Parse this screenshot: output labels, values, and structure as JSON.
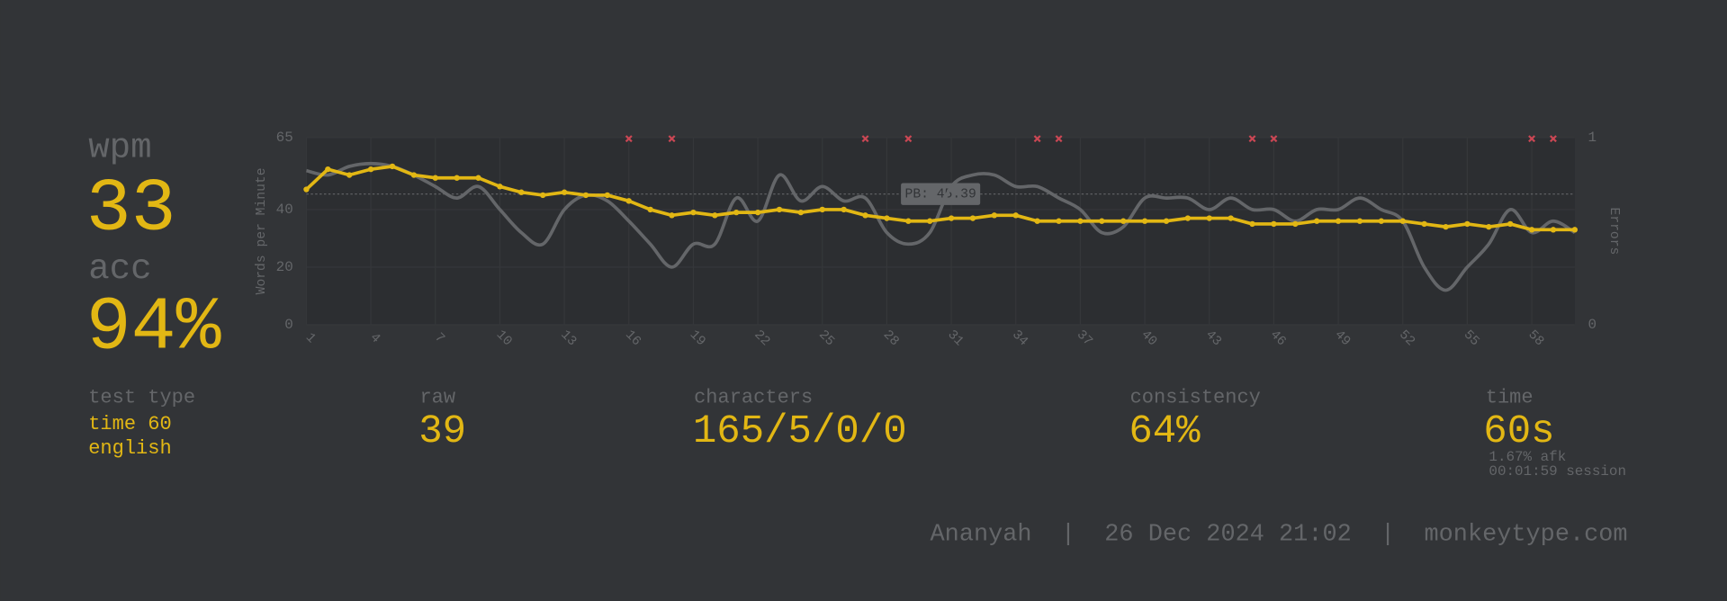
{
  "stats": {
    "wpm": {
      "label": "wpm",
      "value": 33
    },
    "acc": {
      "label": "acc",
      "value": "94%"
    },
    "test_type": {
      "label": "test type",
      "lines": [
        "time 60",
        "english"
      ]
    },
    "raw": {
      "label": "raw",
      "value": 39
    },
    "characters": {
      "label": "characters",
      "value": "165/5/0/0"
    },
    "consistency": {
      "label": "consistency",
      "value": "64%"
    },
    "time": {
      "label": "time",
      "value": "60s",
      "notes": [
        "1.67% afk",
        "00:01:59 session"
      ]
    }
  },
  "footer": "Ananyah  |  26 Dec 2024 21:02  |  monkeytype.com",
  "chart_data": {
    "type": "line",
    "y_label": "Words per Minute",
    "y2_label": "Errors",
    "x": [
      1,
      2,
      3,
      4,
      5,
      6,
      7,
      8,
      9,
      10,
      11,
      12,
      13,
      14,
      15,
      16,
      17,
      18,
      19,
      20,
      21,
      22,
      23,
      24,
      25,
      26,
      27,
      28,
      29,
      30,
      31,
      32,
      33,
      34,
      35,
      36,
      37,
      38,
      39,
      40,
      41,
      42,
      43,
      44,
      45,
      46,
      47,
      48,
      49,
      50,
      51,
      52,
      53,
      54,
      55,
      56,
      57,
      58,
      59,
      60
    ],
    "series": [
      {
        "color": "#646669",
        "smooth": true,
        "values": [
          53.5,
          52,
          55,
          56,
          55,
          52,
          48,
          44,
          48,
          40,
          32,
          28,
          40,
          45,
          43,
          36,
          28,
          20,
          28,
          28,
          44,
          36,
          52,
          43,
          48,
          43,
          44,
          32,
          28,
          32,
          48,
          52,
          52,
          48,
          48,
          44,
          40,
          32,
          34,
          44,
          44,
          44,
          40,
          44,
          40,
          40,
          36,
          40,
          40,
          44,
          40,
          36,
          20,
          12,
          20,
          28,
          40,
          32,
          36,
          32
        ]
      },
      {
        "color": "#e2b714",
        "smooth": false,
        "values": [
          47,
          54,
          52,
          54,
          55,
          52,
          51,
          51,
          51,
          48,
          46,
          45,
          46,
          45,
          45,
          43,
          40,
          38,
          39,
          38,
          39,
          39,
          40,
          39,
          40,
          40,
          38,
          37,
          36,
          36,
          37,
          37,
          38,
          38,
          36,
          36,
          36,
          36,
          36,
          36,
          36,
          37,
          37,
          37,
          35,
          35,
          35,
          36,
          36,
          36,
          36,
          36,
          35,
          34,
          35,
          34,
          35,
          33,
          33,
          33
        ]
      }
    ],
    "errors": {
      "axis": "y2",
      "color": "#ca4754",
      "x": [
        16,
        18,
        27,
        29,
        35,
        36,
        45,
        46,
        58,
        59
      ],
      "values": [
        1,
        1,
        1,
        1,
        1,
        1,
        1,
        1,
        1,
        1
      ]
    },
    "pb": {
      "value": 45.39,
      "label": "PB: 45.39"
    },
    "xlim": [
      1,
      60
    ],
    "xticks": [
      1,
      4,
      7,
      10,
      13,
      16,
      19,
      22,
      25,
      28,
      31,
      34,
      37,
      40,
      43,
      46,
      49,
      52,
      55,
      58
    ],
    "ylim": [
      0,
      65
    ],
    "yticks": [
      0,
      20,
      40,
      65
    ],
    "y2lim": [
      0,
      1
    ],
    "y2ticks": [
      0,
      1
    ],
    "grid": true
  }
}
